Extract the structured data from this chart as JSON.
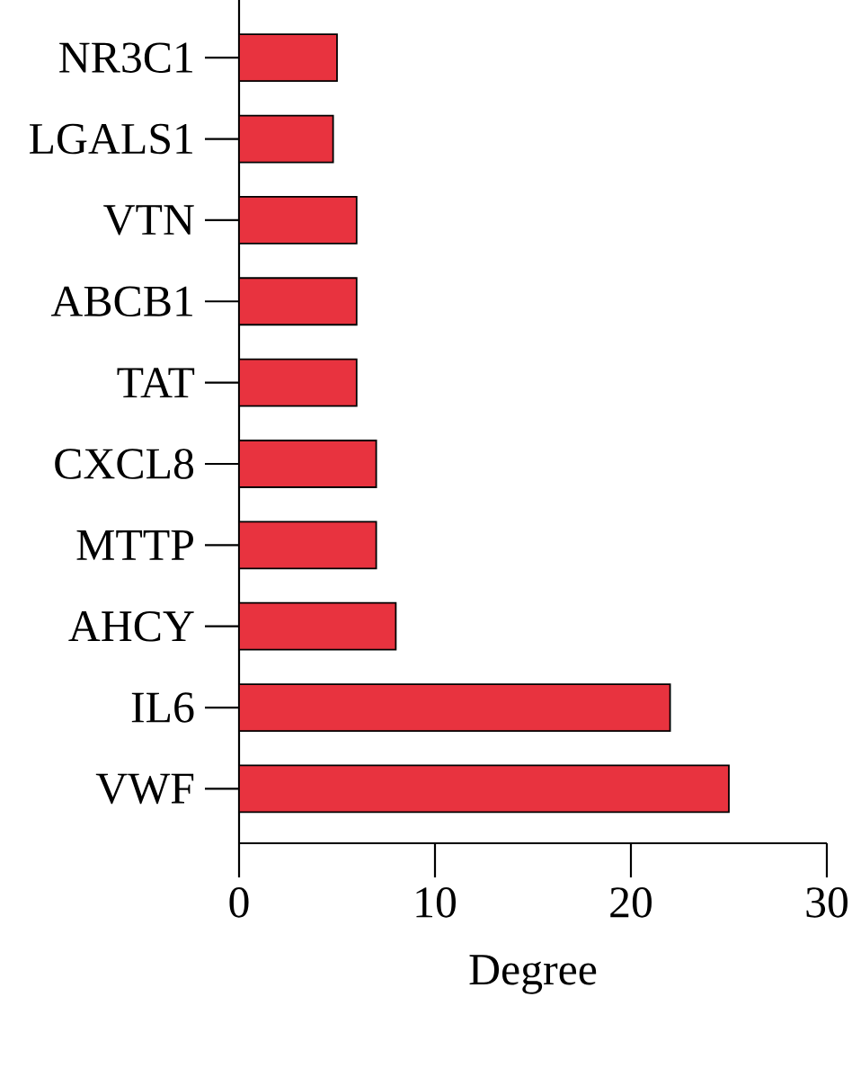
{
  "chart_data": {
    "type": "bar",
    "orientation": "horizontal",
    "xlabel": "Degree",
    "categories": [
      "NR3C1",
      "LGALS1",
      "VTN",
      "ABCB1",
      "TAT",
      "CXCL8",
      "MTTP",
      "AHCY",
      "IL6",
      "VWF"
    ],
    "values": [
      5,
      4.8,
      6,
      6,
      6,
      7,
      7,
      8,
      22,
      25
    ],
    "color": "#e8333f",
    "xlim": [
      0,
      30
    ],
    "xticks": [
      0,
      10,
      20,
      30
    ],
    "grid": false
  }
}
